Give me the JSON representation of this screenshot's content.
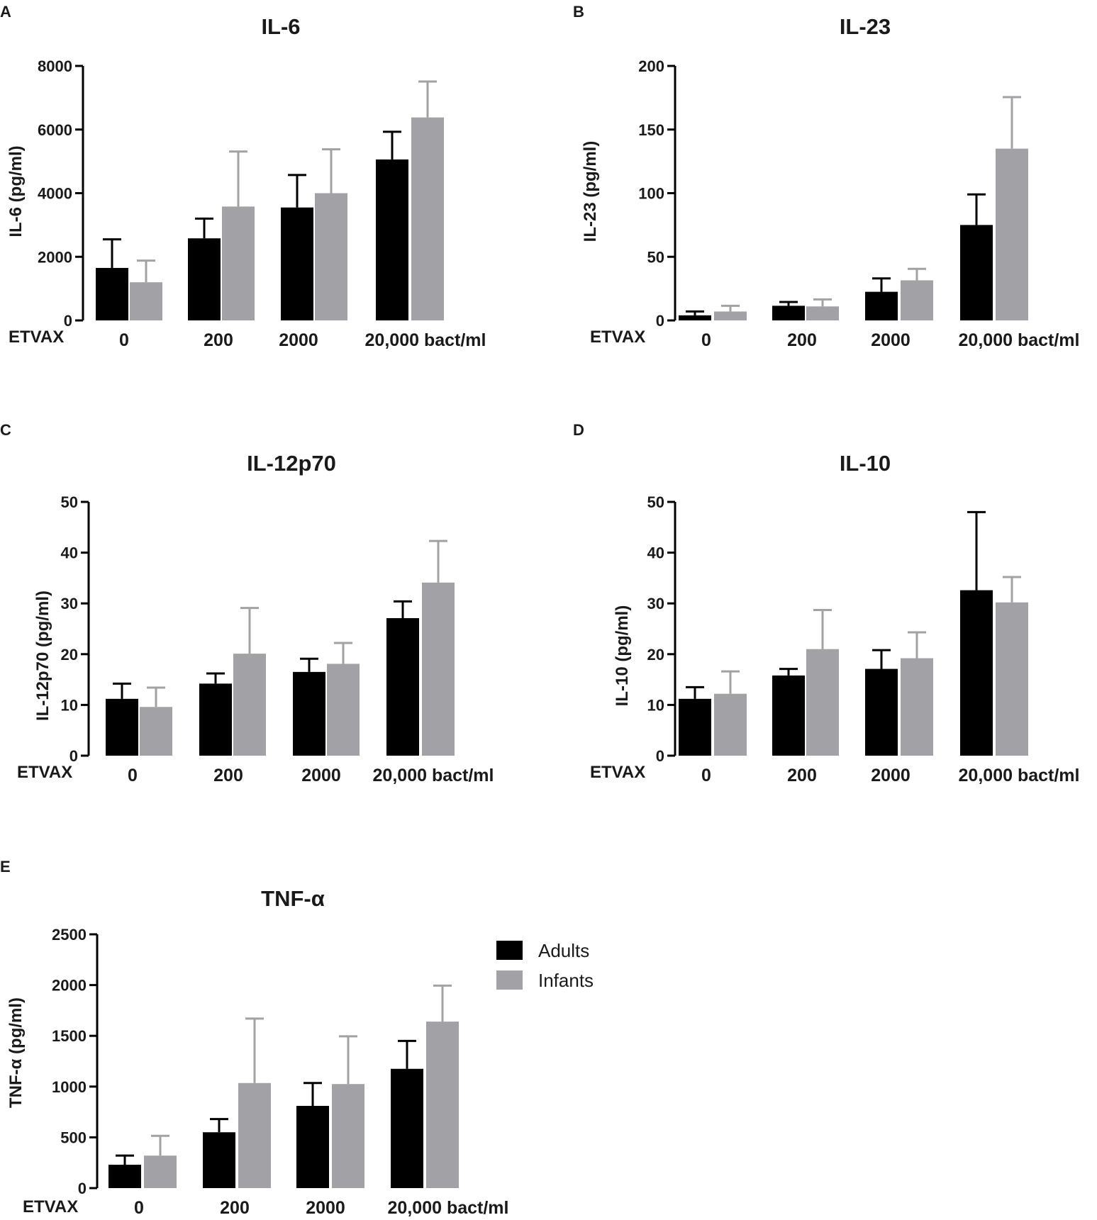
{
  "figure": {
    "x_prefix": "ETVAX",
    "colors": {
      "Adults": "#000000",
      "Infants": "#a2a2a6",
      "axis": "#000000"
    }
  },
  "legend": {
    "items": [
      {
        "label": "Adults",
        "color": "#000000"
      },
      {
        "label": "Infants",
        "color": "#a2a2a6"
      }
    ]
  },
  "chart_data": [
    {
      "panel": "A",
      "type": "bar",
      "title": "IL-6",
      "ylabel": "IL-6 (pg/ml)",
      "xlabel_prefix": "ETVAX",
      "categories": [
        "0",
        "200",
        "2000",
        "20,000 bact/ml"
      ],
      "ylim": [
        0,
        8000
      ],
      "yticks": [
        0,
        2000,
        4000,
        6000,
        8000
      ],
      "series": [
        {
          "name": "Adults",
          "values": [
            1650,
            2580,
            3550,
            5060
          ],
          "errors": [
            900,
            620,
            1020,
            870
          ]
        },
        {
          "name": "Infants",
          "values": [
            1200,
            3580,
            4000,
            6380
          ],
          "errors": [
            680,
            1730,
            1380,
            1130
          ]
        }
      ]
    },
    {
      "panel": "B",
      "type": "bar",
      "title": "IL-23",
      "ylabel": "IL-23 (pg/ml)",
      "xlabel_prefix": "ETVAX",
      "categories": [
        "0",
        "200",
        "2000",
        "20,000 bact/ml"
      ],
      "ylim": [
        0,
        200
      ],
      "yticks": [
        0,
        50,
        100,
        150,
        200
      ],
      "series": [
        {
          "name": "Adults",
          "values": [
            4,
            11.5,
            22.5,
            75
          ],
          "errors": [
            3,
            3,
            10.5,
            24
          ]
        },
        {
          "name": "Infants",
          "values": [
            7,
            11,
            31.5,
            135
          ],
          "errors": [
            4.5,
            5.5,
            9,
            40.5
          ]
        }
      ]
    },
    {
      "panel": "C",
      "type": "bar",
      "title": "IL-12p70",
      "ylabel": "IL-12p70 (pg/ml)",
      "xlabel_prefix": "ETVAX",
      "categories": [
        "0",
        "200",
        "2000",
        "20,000 bact/ml"
      ],
      "ylim": [
        0,
        50
      ],
      "yticks": [
        0,
        10,
        20,
        30,
        40,
        50
      ],
      "series": [
        {
          "name": "Adults",
          "values": [
            11.2,
            14.2,
            16.5,
            27.1
          ],
          "errors": [
            3,
            2,
            2.6,
            3.3
          ]
        },
        {
          "name": "Infants",
          "values": [
            9.6,
            20.1,
            18.1,
            34.1
          ],
          "errors": [
            3.8,
            9,
            4.1,
            8.2
          ]
        }
      ]
    },
    {
      "panel": "D",
      "type": "bar",
      "title": "IL-10",
      "ylabel": "IL-10 (pg/ml)",
      "xlabel_prefix": "ETVAX",
      "categories": [
        "0",
        "200",
        "2000",
        "20,000 bact/ml"
      ],
      "ylim": [
        0,
        50
      ],
      "yticks": [
        0,
        10,
        20,
        30,
        40,
        50
      ],
      "series": [
        {
          "name": "Adults",
          "values": [
            11.2,
            15.8,
            17.1,
            32.6
          ],
          "errors": [
            2.3,
            1.3,
            3.7,
            15.4
          ]
        },
        {
          "name": "Infants",
          "values": [
            12.2,
            21,
            19.2,
            30.2
          ],
          "errors": [
            4.4,
            7.7,
            5.1,
            5
          ]
        }
      ]
    },
    {
      "panel": "E",
      "type": "bar",
      "title": "TNF-α",
      "ylabel": "TNF-α (pg/ml)",
      "xlabel_prefix": "ETVAX",
      "categories": [
        "0",
        "200",
        "2000",
        "20,000 bact/ml"
      ],
      "ylim": [
        0,
        2500
      ],
      "yticks": [
        0,
        500,
        1000,
        1500,
        2000,
        2500
      ],
      "series": [
        {
          "name": "Adults",
          "values": [
            230,
            550,
            810,
            1175
          ],
          "errors": [
            90,
            130,
            225,
            275
          ]
        },
        {
          "name": "Infants",
          "values": [
            320,
            1035,
            1025,
            1640
          ],
          "errors": [
            195,
            635,
            470,
            355
          ]
        }
      ]
    }
  ]
}
